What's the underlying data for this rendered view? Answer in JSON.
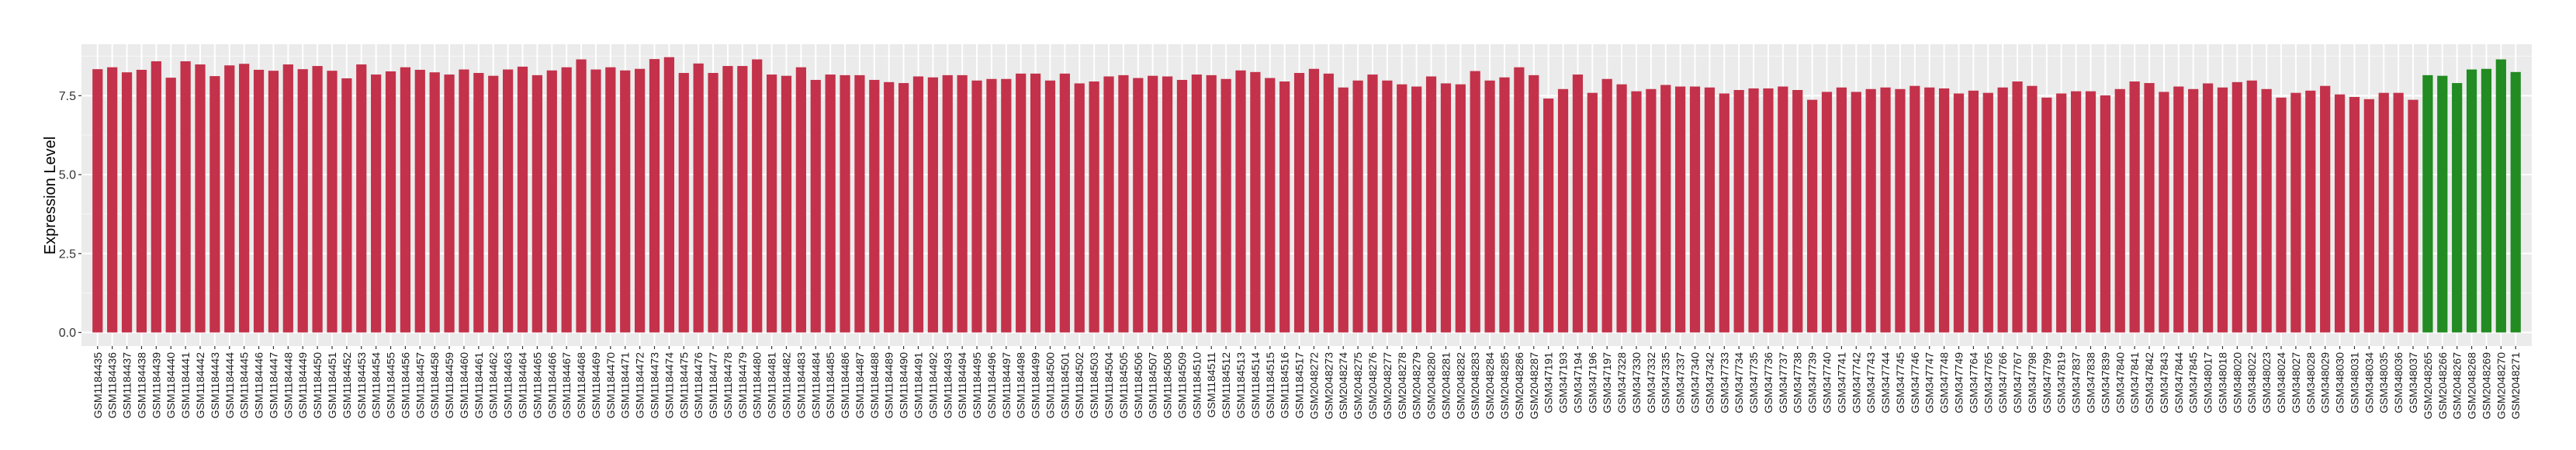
{
  "chart_data": {
    "type": "bar",
    "title": "",
    "xlabel": "",
    "ylabel": "Expression Level",
    "ylim": [
      -0.43,
      9.13
    ],
    "yticks": [
      0,
      2.5,
      5,
      7.5
    ],
    "ytick_labels": [
      "0.0",
      "2.5",
      "5.0",
      "7.5"
    ],
    "grid": true,
    "legend": "none",
    "colors": {
      "group_a": "#C3324A",
      "group_b": "#228B22",
      "panel": "#EBEBEB",
      "grid": "#FFFFFF"
    },
    "categories": [
      "GSM1184435",
      "GSM1184436",
      "GSM1184437",
      "GSM1184438",
      "GSM1184439",
      "GSM1184440",
      "GSM1184441",
      "GSM1184442",
      "GSM1184443",
      "GSM1184444",
      "GSM1184445",
      "GSM1184446",
      "GSM1184447",
      "GSM1184448",
      "GSM1184449",
      "GSM1184450",
      "GSM1184451",
      "GSM1184452",
      "GSM1184453",
      "GSM1184454",
      "GSM1184455",
      "GSM1184456",
      "GSM1184457",
      "GSM1184458",
      "GSM1184459",
      "GSM1184460",
      "GSM1184461",
      "GSM1184462",
      "GSM1184463",
      "GSM1184464",
      "GSM1184465",
      "GSM1184466",
      "GSM1184467",
      "GSM1184468",
      "GSM1184469",
      "GSM1184470",
      "GSM1184471",
      "GSM1184472",
      "GSM1184473",
      "GSM1184474",
      "GSM1184475",
      "GSM1184476",
      "GSM1184477",
      "GSM1184478",
      "GSM1184479",
      "GSM1184480",
      "GSM1184481",
      "GSM1184482",
      "GSM1184483",
      "GSM1184484",
      "GSM1184485",
      "GSM1184486",
      "GSM1184487",
      "GSM1184488",
      "GSM1184489",
      "GSM1184490",
      "GSM1184491",
      "GSM1184492",
      "GSM1184493",
      "GSM1184494",
      "GSM1184495",
      "GSM1184496",
      "GSM1184497",
      "GSM1184498",
      "GSM1184499",
      "GSM1184500",
      "GSM1184501",
      "GSM1184502",
      "GSM1184503",
      "GSM1184504",
      "GSM1184505",
      "GSM1184506",
      "GSM1184507",
      "GSM1184508",
      "GSM1184509",
      "GSM1184510",
      "GSM1184511",
      "GSM1184512",
      "GSM1184513",
      "GSM1184514",
      "GSM1184515",
      "GSM1184516",
      "GSM1184517",
      "GSM2048272",
      "GSM2048273",
      "GSM2048274",
      "GSM2048275",
      "GSM2048276",
      "GSM2048277",
      "GSM2048278",
      "GSM2048279",
      "GSM2048280",
      "GSM2048281",
      "GSM2048282",
      "GSM2048283",
      "GSM2048284",
      "GSM2048285",
      "GSM2048286",
      "GSM2048287",
      "GSM347191",
      "GSM347193",
      "GSM347194",
      "GSM347196",
      "GSM347197",
      "GSM347328",
      "GSM347330",
      "GSM347332",
      "GSM347335",
      "GSM347337",
      "GSM347340",
      "GSM347342",
      "GSM347733",
      "GSM347734",
      "GSM347735",
      "GSM347736",
      "GSM347737",
      "GSM347738",
      "GSM347739",
      "GSM347740",
      "GSM347741",
      "GSM347742",
      "GSM347743",
      "GSM347744",
      "GSM347745",
      "GSM347746",
      "GSM347747",
      "GSM347748",
      "GSM347749",
      "GSM347764",
      "GSM347765",
      "GSM347766",
      "GSM347767",
      "GSM347798",
      "GSM347799",
      "GSM347819",
      "GSM347837",
      "GSM347838",
      "GSM347839",
      "GSM347840",
      "GSM347841",
      "GSM347842",
      "GSM347843",
      "GSM347844",
      "GSM347845",
      "GSM348017",
      "GSM348018",
      "GSM348020",
      "GSM348022",
      "GSM348023",
      "GSM348024",
      "GSM348027",
      "GSM348028",
      "GSM348029",
      "GSM348030",
      "GSM348031",
      "GSM348034",
      "GSM348035",
      "GSM348036",
      "GSM348037",
      "GSM2048265",
      "GSM2048266",
      "GSM2048267",
      "GSM2048268",
      "GSM2048269",
      "GSM2048270",
      "GSM2048271"
    ],
    "values": [
      8.34,
      8.4,
      8.24,
      8.32,
      8.59,
      8.07,
      8.59,
      8.49,
      8.12,
      8.46,
      8.51,
      8.32,
      8.29,
      8.49,
      8.34,
      8.44,
      8.29,
      8.05,
      8.49,
      8.17,
      8.27,
      8.4,
      8.32,
      8.24,
      8.17,
      8.33,
      8.22,
      8.13,
      8.33,
      8.42,
      8.15,
      8.3,
      8.4,
      8.65,
      8.33,
      8.4,
      8.3,
      8.35,
      8.66,
      8.72,
      8.22,
      8.52,
      8.22,
      8.44,
      8.44,
      8.65,
      8.17,
      8.13,
      8.4,
      8.0,
      8.17,
      8.15,
      8.15,
      8.0,
      7.93,
      7.9,
      8.11,
      8.08,
      8.15,
      8.15,
      7.98,
      8.03,
      8.03,
      8.2,
      8.2,
      7.98,
      8.2,
      7.89,
      7.95,
      8.11,
      8.15,
      8.06,
      8.13,
      8.11,
      8.0,
      8.17,
      8.15,
      8.03,
      8.3,
      8.25,
      8.06,
      7.95,
      8.22,
      8.35,
      8.2,
      7.76,
      7.98,
      8.17,
      7.98,
      7.86,
      7.79,
      8.11,
      7.89,
      7.86,
      8.28,
      7.98,
      8.08,
      8.4,
      8.15,
      7.41,
      7.71,
      8.17,
      7.59,
      8.03,
      7.86,
      7.64,
      7.71,
      7.84,
      7.79,
      7.79,
      7.76,
      7.57,
      7.68,
      7.73,
      7.73,
      7.79,
      7.68,
      7.37,
      7.62,
      7.76,
      7.62,
      7.71,
      7.76,
      7.71,
      7.81,
      7.76,
      7.73,
      7.57,
      7.66,
      7.59,
      7.76,
      7.95,
      7.81,
      7.44,
      7.57,
      7.64,
      7.64,
      7.51,
      7.71,
      7.95,
      7.9,
      7.62,
      7.79,
      7.71,
      7.89,
      7.76,
      7.93,
      7.98,
      7.71,
      7.44,
      7.59,
      7.66,
      7.81,
      7.54,
      7.46,
      7.39,
      7.59,
      7.59,
      7.37,
      8.15,
      8.13,
      7.9,
      8.33,
      8.35,
      8.65,
      8.25
    ],
    "groups_count": {
      "group_a": 159,
      "group_b": 7
    }
  }
}
